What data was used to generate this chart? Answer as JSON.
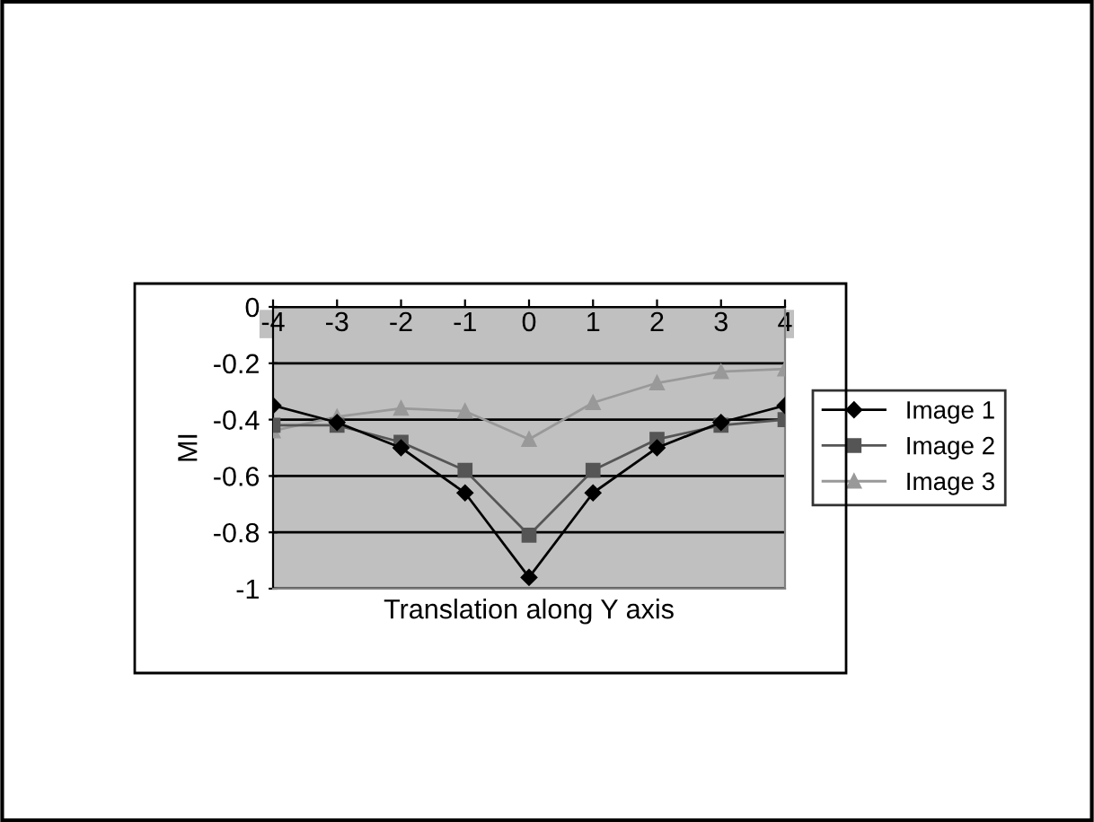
{
  "chart_data": {
    "type": "line",
    "xlabel": "Translation along Y axis",
    "ylabel": "MI",
    "categories": [
      "-4",
      "-3",
      "-2",
      "-1",
      "0",
      "1",
      "2",
      "3",
      "4"
    ],
    "ylim": [
      -1,
      0
    ],
    "yticks": [
      -1,
      -0.8,
      -0.6,
      -0.4,
      -0.2,
      0
    ],
    "grid": "y",
    "legend": "right",
    "series": [
      {
        "name": "Image 1",
        "color": "#000000",
        "marker": "diamond",
        "values": [
          -0.35,
          -0.41,
          -0.5,
          -0.66,
          -0.96,
          -0.66,
          -0.5,
          -0.41,
          -0.35
        ]
      },
      {
        "name": "Image 2",
        "color": "#555555",
        "marker": "square",
        "values": [
          -0.42,
          -0.42,
          -0.48,
          -0.58,
          -0.81,
          -0.58,
          -0.47,
          -0.42,
          -0.4
        ]
      },
      {
        "name": "Image 3",
        "color": "#999999",
        "marker": "triangle",
        "values": [
          -0.44,
          -0.39,
          -0.36,
          -0.37,
          -0.47,
          -0.34,
          -0.27,
          -0.23,
          -0.22
        ]
      }
    ]
  }
}
